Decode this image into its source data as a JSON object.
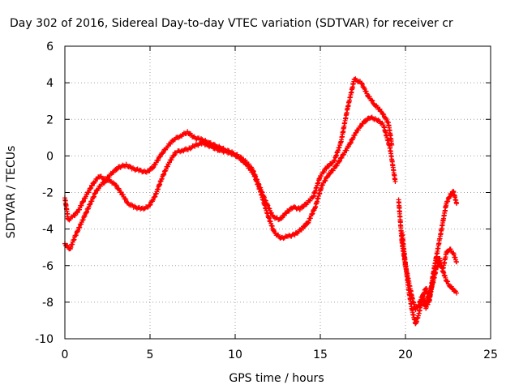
{
  "chart_data": {
    "type": "scatter",
    "title": "Day 302 of 2016, Sidereal Day-to-day VTEC variation (SDTVAR) for receiver cr",
    "xlabel": "GPS time / hours",
    "ylabel": "SDTVAR / TECUs",
    "xlim": [
      0,
      25
    ],
    "ylim": [
      -10,
      6
    ],
    "xticks": [
      0,
      5,
      10,
      15,
      20,
      25
    ],
    "yticks": [
      -10,
      -8,
      -6,
      -4,
      -2,
      0,
      2,
      4,
      6
    ],
    "grid": true,
    "marker": "+",
    "series": [
      {
        "name": "trace-a",
        "color": "#ff0000",
        "x": [
          0.0,
          0.2,
          0.5,
          0.8,
          1.0,
          1.3,
          1.6,
          2.0,
          2.4,
          2.8,
          3.2,
          3.6,
          4.0,
          4.4,
          4.8,
          5.2,
          5.6,
          6.0,
          6.4,
          6.8,
          7.2,
          7.6,
          8.0,
          8.5,
          9.0,
          9.5,
          10.0,
          10.5,
          11.0,
          11.4,
          11.8,
          12.2,
          12.6,
          13.0,
          13.4,
          13.8,
          14.2,
          14.6,
          15.0,
          15.4,
          15.8,
          16.2,
          16.6,
          17.0,
          17.4,
          17.8,
          18.2,
          18.6,
          19.0,
          19.2
        ],
        "y": [
          -2.3,
          -3.5,
          -3.3,
          -3.0,
          -2.6,
          -2.1,
          -1.6,
          -1.1,
          -1.3,
          -0.9,
          -0.6,
          -0.5,
          -0.7,
          -0.8,
          -0.9,
          -0.6,
          0.0,
          0.5,
          0.9,
          1.1,
          1.3,
          1.0,
          0.9,
          0.7,
          0.5,
          0.3,
          0.1,
          -0.2,
          -0.7,
          -1.6,
          -2.5,
          -3.3,
          -3.5,
          -3.1,
          -2.8,
          -2.9,
          -2.6,
          -2.2,
          -1.1,
          -0.6,
          -0.3,
          0.7,
          2.6,
          4.2,
          4.0,
          3.3,
          2.8,
          2.4,
          1.8,
          0.6
        ]
      },
      {
        "name": "trace-b",
        "color": "#ff0000",
        "x": [
          0.0,
          0.3,
          0.6,
          0.9,
          1.2,
          1.5,
          1.8,
          2.1,
          2.5,
          2.9,
          3.3,
          3.7,
          4.1,
          4.5,
          4.9,
          5.3,
          5.7,
          6.1,
          6.5,
          6.9,
          7.3,
          7.7,
          8.1,
          8.6,
          9.1,
          9.6,
          10.1,
          10.6,
          11.1,
          11.5,
          11.9,
          12.3,
          12.7,
          13.1,
          13.5,
          13.9,
          14.3,
          14.7,
          15.1,
          15.5,
          15.9,
          16.3,
          16.7,
          17.1,
          17.5,
          17.9,
          18.3,
          18.7,
          19.1,
          19.4
        ],
        "y": [
          -4.8,
          -5.1,
          -4.4,
          -3.8,
          -3.2,
          -2.6,
          -2.0,
          -1.6,
          -1.3,
          -1.5,
          -2.0,
          -2.6,
          -2.8,
          -2.9,
          -2.8,
          -2.2,
          -1.2,
          -0.4,
          0.2,
          0.3,
          0.4,
          0.6,
          0.7,
          0.5,
          0.3,
          0.2,
          0.0,
          -0.4,
          -1.0,
          -2.0,
          -3.2,
          -4.2,
          -4.5,
          -4.4,
          -4.3,
          -4.0,
          -3.6,
          -2.8,
          -1.6,
          -1.0,
          -0.6,
          0.0,
          0.6,
          1.3,
          1.8,
          2.1,
          2.0,
          1.7,
          0.4,
          -1.4
        ]
      },
      {
        "name": "trace-c",
        "color": "#ff0000",
        "x": [
          19.6,
          19.8,
          20.0,
          20.2,
          20.4,
          20.6,
          20.8,
          21.0,
          21.2,
          21.4,
          21.6,
          21.8,
          22.0,
          22.2,
          22.4,
          22.6,
          22.8,
          23.0
        ],
        "y": [
          -2.4,
          -4.8,
          -6.0,
          -6.9,
          -7.8,
          -8.4,
          -8.1,
          -7.6,
          -8.3,
          -7.9,
          -6.9,
          -5.6,
          -4.6,
          -3.6,
          -2.6,
          -2.2,
          -1.9,
          -2.6
        ]
      },
      {
        "name": "trace-d",
        "color": "#ff0000",
        "x": [
          19.8,
          20.0,
          20.2,
          20.4,
          20.6,
          20.8,
          21.0,
          21.2,
          21.4,
          21.6,
          21.8,
          22.0,
          22.2,
          22.4,
          22.6,
          22.8,
          23.0
        ],
        "y": [
          -4.2,
          -5.9,
          -7.4,
          -8.5,
          -9.2,
          -8.6,
          -7.7,
          -7.2,
          -7.9,
          -6.6,
          -5.6,
          -5.9,
          -6.2,
          -5.3,
          -5.1,
          -5.3,
          -5.8
        ]
      },
      {
        "name": "trace-e",
        "color": "#ff0000",
        "x": [
          21.0,
          21.2,
          21.4,
          21.6,
          21.8,
          22.0,
          22.2,
          22.4,
          22.6,
          22.8,
          23.0
        ],
        "y": [
          -8.1,
          -8.0,
          -7.6,
          -7.0,
          -6.2,
          -5.6,
          -6.3,
          -6.8,
          -7.1,
          -7.3,
          -7.5
        ]
      }
    ]
  }
}
